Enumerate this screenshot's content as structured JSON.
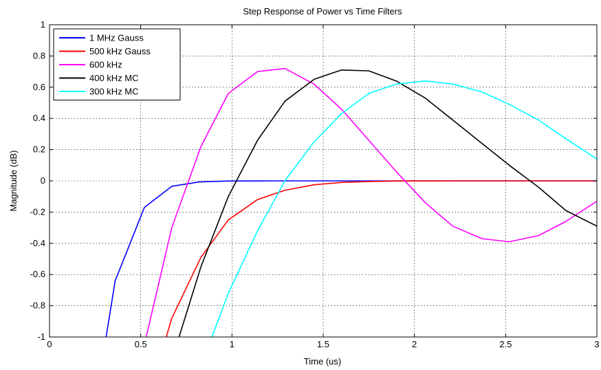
{
  "chart_data": {
    "type": "line",
    "title": "Step Response of Power vs Time Filters",
    "xlabel": "Time (us)",
    "ylabel": "Magnitude (dB)",
    "xlim": [
      0,
      3
    ],
    "ylim": [
      -1,
      1
    ],
    "x_ticks": [
      "0",
      "0.5",
      "1",
      "1.5",
      "2",
      "2.5",
      "3"
    ],
    "y_ticks": [
      "-1",
      "-0.8",
      "-0.6",
      "-0.4",
      "-0.2",
      "0",
      "0.2",
      "0.4",
      "0.6",
      "0.8",
      "1"
    ],
    "grid": true,
    "legend_position": "top-left",
    "series": [
      {
        "name": "1 MHz Gauss",
        "color": "#0000ff",
        "points": [
          [
            0.31,
            -1.0
          ],
          [
            0.36,
            -0.64
          ],
          [
            0.52,
            -0.17
          ],
          [
            0.67,
            -0.035
          ],
          [
            0.82,
            -0.007
          ],
          [
            0.98,
            -0.001
          ],
          [
            1.2,
            0
          ],
          [
            1.5,
            0
          ],
          [
            2.0,
            0
          ],
          [
            2.5,
            0
          ],
          [
            3.0,
            0
          ]
        ]
      },
      {
        "name": "500 kHz Gauss",
        "color": "#ff0000",
        "points": [
          [
            0.64,
            -1.0
          ],
          [
            0.67,
            -0.88
          ],
          [
            0.83,
            -0.49
          ],
          [
            0.98,
            -0.25
          ],
          [
            1.14,
            -0.12
          ],
          [
            1.29,
            -0.06
          ],
          [
            1.45,
            -0.025
          ],
          [
            1.6,
            -0.01
          ],
          [
            1.75,
            -0.004
          ],
          [
            1.9,
            -0.001
          ],
          [
            2.2,
            0
          ],
          [
            2.5,
            0
          ],
          [
            3.0,
            0
          ]
        ]
      },
      {
        "name": "600 kHz",
        "color": "#ff00ff",
        "points": [
          [
            0.53,
            -1.0
          ],
          [
            0.67,
            -0.3
          ],
          [
            0.83,
            0.22
          ],
          [
            0.98,
            0.56
          ],
          [
            1.14,
            0.7
          ],
          [
            1.29,
            0.72
          ],
          [
            1.45,
            0.62
          ],
          [
            1.6,
            0.46
          ],
          [
            1.75,
            0.26
          ],
          [
            1.9,
            0.06
          ],
          [
            2.06,
            -0.14
          ],
          [
            2.21,
            -0.29
          ],
          [
            2.37,
            -0.37
          ],
          [
            2.52,
            -0.39
          ],
          [
            2.68,
            -0.35
          ],
          [
            2.83,
            -0.26
          ],
          [
            3.0,
            -0.13
          ]
        ]
      },
      {
        "name": "400 kHz MC",
        "color": "#000000",
        "points": [
          [
            0.71,
            -1.0
          ],
          [
            0.83,
            -0.55
          ],
          [
            0.98,
            -0.1
          ],
          [
            1.14,
            0.26
          ],
          [
            1.29,
            0.51
          ],
          [
            1.45,
            0.65
          ],
          [
            1.6,
            0.71
          ],
          [
            1.75,
            0.705
          ],
          [
            1.9,
            0.64
          ],
          [
            2.06,
            0.53
          ],
          [
            2.21,
            0.39
          ],
          [
            2.37,
            0.24
          ],
          [
            2.52,
            0.1
          ],
          [
            2.68,
            -0.04
          ],
          [
            2.83,
            -0.19
          ],
          [
            3.0,
            -0.29
          ]
        ]
      },
      {
        "name": "300 kHz MC",
        "color": "#00ffff",
        "points": [
          [
            0.89,
            -1.0
          ],
          [
            0.98,
            -0.72
          ],
          [
            1.14,
            -0.32
          ],
          [
            1.29,
            0.0
          ],
          [
            1.45,
            0.25
          ],
          [
            1.6,
            0.43
          ],
          [
            1.75,
            0.56
          ],
          [
            1.9,
            0.62
          ],
          [
            2.06,
            0.64
          ],
          [
            2.21,
            0.62
          ],
          [
            2.37,
            0.57
          ],
          [
            2.52,
            0.49
          ],
          [
            2.68,
            0.39
          ],
          [
            2.83,
            0.27
          ],
          [
            3.0,
            0.14
          ]
        ]
      }
    ]
  }
}
